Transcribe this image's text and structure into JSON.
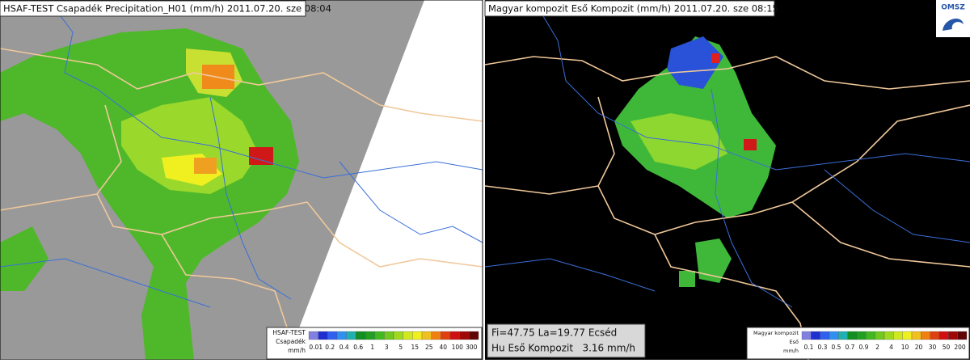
{
  "left_panel": {
    "title": "HSAF-TEST Csapadék Precipitation_H01 (mm/h) 2011.07.20. sze 08:04",
    "legend": {
      "lines": [
        "HSAF-TEST",
        "Csapadék",
        "mm/h"
      ],
      "ticks": [
        "0.01",
        "0.2",
        "0.4",
        "0.6",
        "1",
        "3",
        "5",
        "15",
        "25",
        "40",
        "100",
        "300"
      ]
    }
  },
  "right_panel": {
    "title": "Magyar kompozit Eső Kompozit (mm/h) 2011.07.20. sze 08:15",
    "logo": "OMSZ",
    "info": {
      "line1": "Fi=47.75 La=19.77 Ecséd",
      "line2": "Hu Eső Kompozit   3.16 mm/h"
    },
    "legend": {
      "lines": [
        "Magyar kompozit",
        "Eső",
        "mm/h"
      ],
      "ticks": [
        "0.1",
        "0.3",
        "0.5",
        "0.7",
        "0.9",
        "2",
        "4",
        "10",
        "20",
        "30",
        "50",
        "200"
      ]
    }
  }
}
